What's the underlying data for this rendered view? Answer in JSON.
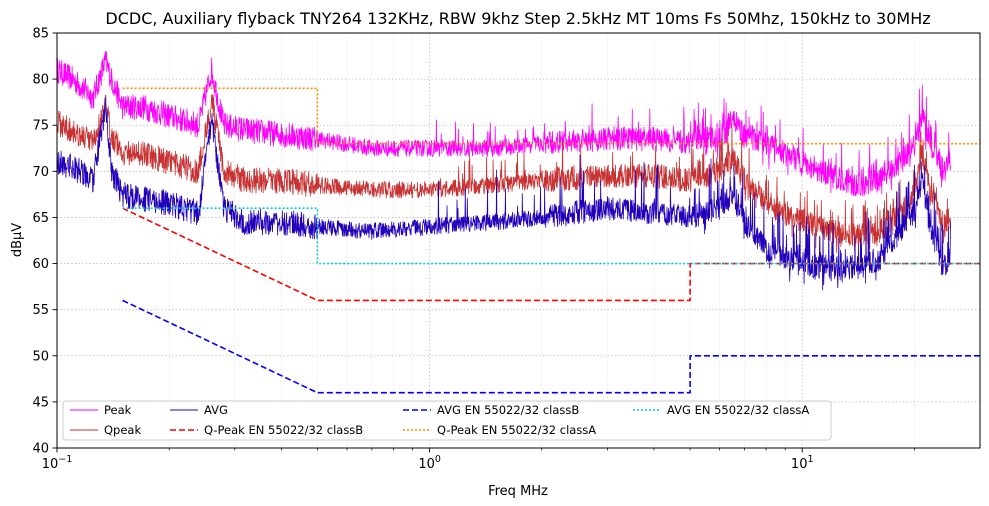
{
  "chart_data": {
    "type": "line",
    "title": "DCDC, Auxiliary flyback TNY264 132KHz, RBW 9khz Step 2.5kHz MT 10ms Fs 50Mhz, 150kHz to 30MHz",
    "xlabel": "Freq MHz",
    "ylabel": "dBµV",
    "xscale": "log",
    "xlim": [
      0.1,
      30
    ],
    "ylim": [
      40,
      85
    ],
    "x_tick_labels": [
      {
        "value": 0.1,
        "base": "10",
        "exp": "−1"
      },
      {
        "value": 1,
        "base": "10",
        "exp": "0"
      },
      {
        "value": 10,
        "base": "10",
        "exp": "1"
      }
    ],
    "y_ticks": [
      "40",
      "45",
      "50",
      "55",
      "60",
      "65",
      "70",
      "75",
      "80",
      "85"
    ],
    "grid": "major and minor, dotted",
    "legend_position": "lower-left",
    "legend_columns": 4,
    "series": [
      {
        "name": "Peak",
        "color": "#ff00ff",
        "style": "solid",
        "width": 0.8,
        "noise": "measured",
        "x": [
          0.1,
          0.11,
          0.125,
          0.135,
          0.14,
          0.15,
          0.17,
          0.2,
          0.24,
          0.26,
          0.28,
          0.32,
          0.4,
          0.5,
          0.7,
          1.0,
          1.5,
          2.0,
          3.0,
          4.0,
          5.0,
          6.0,
          6.5,
          7.0,
          8.0,
          10.0,
          12.0,
          14.0,
          16.0,
          18.0,
          20.0,
          21.0,
          22.0,
          24.0,
          25.0
        ],
        "y": [
          81,
          80,
          78,
          82,
          80,
          77,
          77,
          76,
          75,
          81,
          75,
          74.5,
          74,
          73.5,
          72.5,
          72.5,
          72.5,
          73,
          73.5,
          73.5,
          73,
          74,
          75.5,
          74,
          73,
          71,
          69.5,
          68.5,
          69,
          70.5,
          73,
          76,
          73,
          70,
          71
        ]
      },
      {
        "name": "Qpeak",
        "color": "#c83232",
        "style": "solid",
        "width": 0.8,
        "noise": "measured",
        "x": [
          0.1,
          0.11,
          0.125,
          0.135,
          0.14,
          0.15,
          0.17,
          0.2,
          0.24,
          0.26,
          0.28,
          0.32,
          0.4,
          0.5,
          0.7,
          1.0,
          1.5,
          2.0,
          3.0,
          4.0,
          5.0,
          6.0,
          6.5,
          7.0,
          8.0,
          10.0,
          12.0,
          14.0,
          16.0,
          18.0,
          20.0,
          21.0,
          22.0,
          24.0,
          25.0
        ],
        "y": [
          75.3,
          74.5,
          73,
          77,
          74,
          72,
          72,
          71,
          70,
          78,
          70,
          69,
          69,
          68.5,
          68,
          68,
          68.5,
          69,
          69.5,
          69.5,
          69,
          70,
          71.5,
          69,
          66.5,
          64.5,
          63.5,
          63,
          63.5,
          65,
          67.5,
          72,
          68,
          64,
          65
        ]
      },
      {
        "name": "AVG",
        "color": "#2200bb",
        "style": "solid",
        "width": 0.8,
        "noise": "measured",
        "x": [
          0.1,
          0.11,
          0.125,
          0.135,
          0.14,
          0.15,
          0.17,
          0.2,
          0.24,
          0.26,
          0.28,
          0.32,
          0.4,
          0.5,
          0.7,
          1.0,
          1.5,
          2.0,
          3.0,
          4.0,
          5.0,
          6.0,
          6.5,
          7.0,
          8.0,
          10.0,
          12.0,
          14.0,
          16.0,
          18.0,
          20.0,
          21.0,
          22.0,
          24.0,
          25.0
        ],
        "y": [
          71,
          70.5,
          69,
          77,
          70,
          67.5,
          67,
          66.5,
          65.5,
          76,
          66,
          64.5,
          64.5,
          64,
          63.5,
          64,
          64.5,
          65,
          66,
          65.5,
          65,
          66,
          67.5,
          64.5,
          61.5,
          60,
          59.5,
          59.5,
          60.5,
          63,
          66,
          69,
          64,
          59.5,
          61
        ]
      },
      {
        "name": "Q-Peak EN 55022/32 classB",
        "color": "#ff0000",
        "style": "dashed",
        "width": 1.6,
        "noise": "none",
        "x": [
          0.15,
          0.5,
          5,
          5,
          30
        ],
        "y": [
          66,
          56,
          56,
          60,
          60
        ]
      },
      {
        "name": "AVG EN 55022/32 classB",
        "color": "#0000ff",
        "style": "dashed",
        "width": 1.6,
        "noise": "none",
        "x": [
          0.15,
          0.5,
          5,
          5,
          30
        ],
        "y": [
          56,
          46,
          46,
          50,
          50
        ]
      },
      {
        "name": "Q-Peak EN 55022/32 classA",
        "color": "#ff8c00",
        "style": "dotted",
        "width": 1.6,
        "noise": "none",
        "x": [
          0.15,
          0.5,
          0.5,
          30
        ],
        "y": [
          79,
          79,
          73,
          73
        ]
      },
      {
        "name": "AVG EN 55022/32 classA",
        "color": "#00ccdd",
        "style": "dotted",
        "width": 1.6,
        "noise": "none",
        "x": [
          0.15,
          0.5,
          0.5,
          30
        ],
        "y": [
          66,
          66,
          60,
          60
        ]
      }
    ]
  }
}
